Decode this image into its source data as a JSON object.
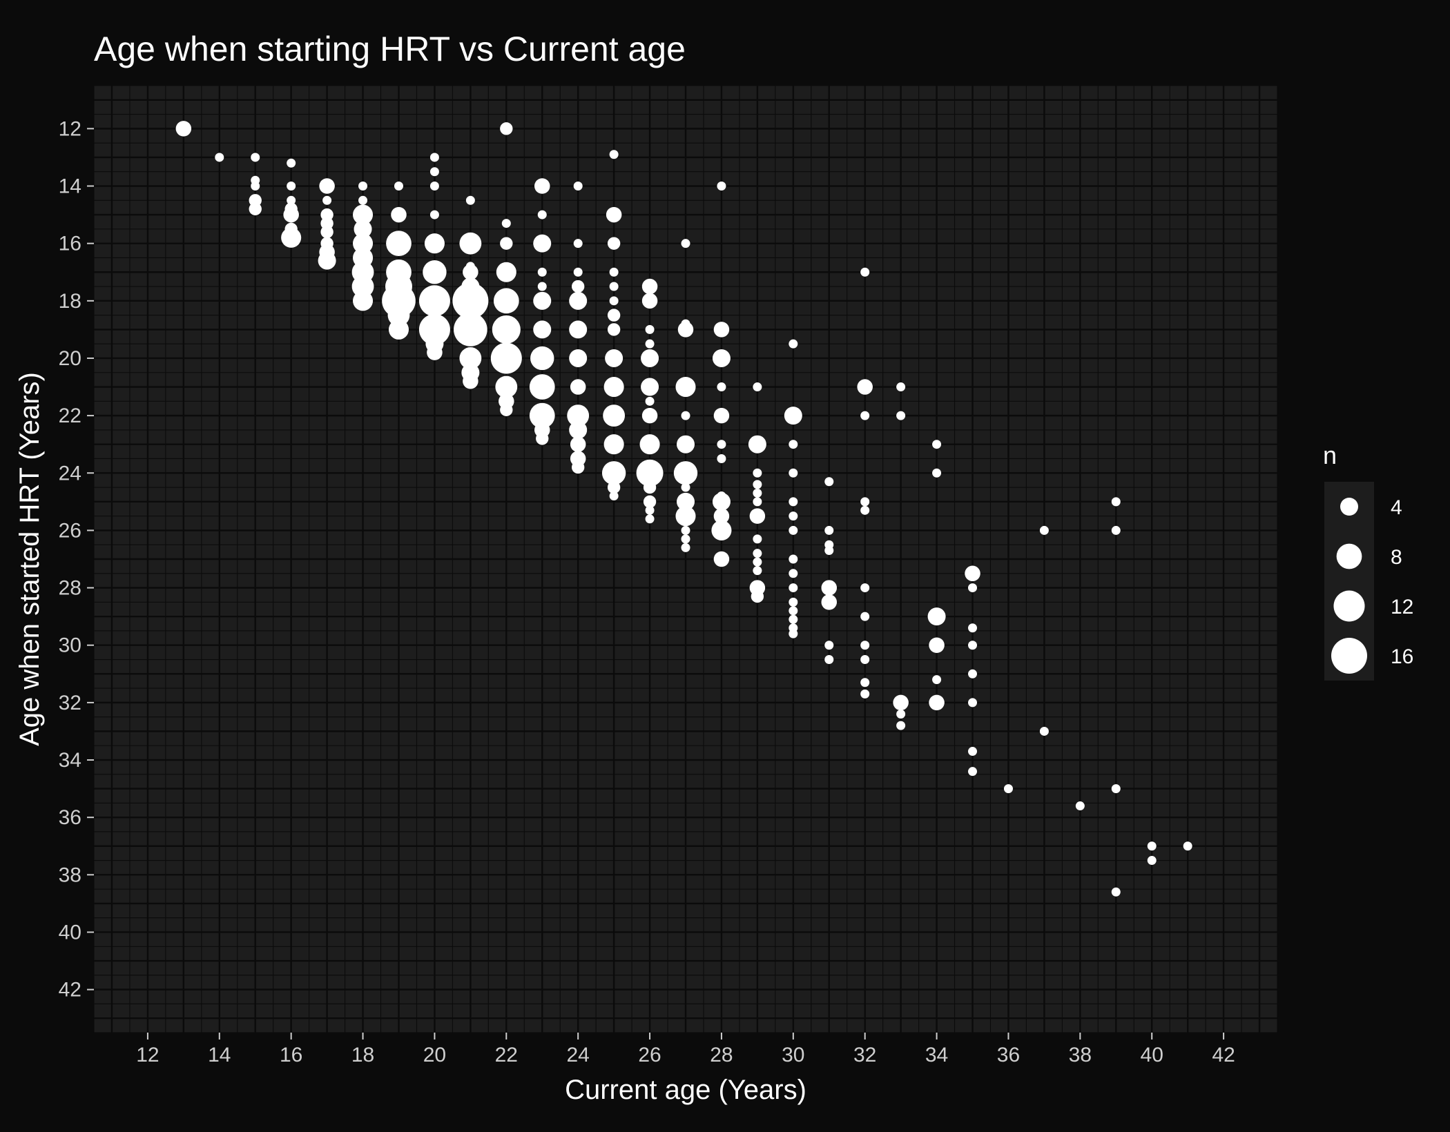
{
  "chart_data": {
    "type": "scatter",
    "title": "Age when starting HRT vs Current age",
    "xlabel": "Current age (Years)",
    "ylabel": "Age when started HRT (Years)",
    "xlim": [
      10.5,
      43.5
    ],
    "ylim": [
      10.5,
      43.5
    ],
    "y_reversed": true,
    "x_ticks": [
      12,
      14,
      16,
      18,
      20,
      22,
      24,
      26,
      28,
      30,
      32,
      34,
      36,
      38,
      40,
      42
    ],
    "y_ticks": [
      12,
      14,
      16,
      18,
      20,
      22,
      24,
      26,
      28,
      30,
      32,
      34,
      36,
      38,
      40,
      42
    ],
    "grid": true,
    "colors": {
      "background": "#0b0b0b",
      "panel": "#1d1d1d",
      "grid": "#0b0b0b",
      "point": "#ffffff"
    },
    "size_legend": {
      "title": "n",
      "placement": "right",
      "values": [
        4,
        8,
        12,
        16
      ]
    },
    "points": [
      {
        "x": 13,
        "y": 12,
        "n": 3
      },
      {
        "x": 14,
        "y": 13,
        "n": 1
      },
      {
        "x": 15,
        "y": 13,
        "n": 1
      },
      {
        "x": 15,
        "y": 13.8,
        "n": 1
      },
      {
        "x": 15,
        "y": 14,
        "n": 1
      },
      {
        "x": 15,
        "y": 14.5,
        "n": 2
      },
      {
        "x": 15,
        "y": 14.8,
        "n": 2
      },
      {
        "x": 16,
        "y": 13.2,
        "n": 1
      },
      {
        "x": 16,
        "y": 14,
        "n": 1
      },
      {
        "x": 16,
        "y": 14.5,
        "n": 1
      },
      {
        "x": 16,
        "y": 14.8,
        "n": 2
      },
      {
        "x": 16,
        "y": 15,
        "n": 3
      },
      {
        "x": 16,
        "y": 15.5,
        "n": 2
      },
      {
        "x": 16,
        "y": 15.8,
        "n": 5
      },
      {
        "x": 17,
        "y": 14,
        "n": 3
      },
      {
        "x": 17,
        "y": 14.5,
        "n": 1
      },
      {
        "x": 17,
        "y": 15,
        "n": 2
      },
      {
        "x": 17,
        "y": 15.3,
        "n": 2
      },
      {
        "x": 17,
        "y": 15.6,
        "n": 2
      },
      {
        "x": 17,
        "y": 16,
        "n": 2
      },
      {
        "x": 17,
        "y": 16.3,
        "n": 3
      },
      {
        "x": 17,
        "y": 16.6,
        "n": 4
      },
      {
        "x": 18,
        "y": 14,
        "n": 1
      },
      {
        "x": 18,
        "y": 14.5,
        "n": 1
      },
      {
        "x": 18,
        "y": 15,
        "n": 5
      },
      {
        "x": 18,
        "y": 15.5,
        "n": 4
      },
      {
        "x": 18,
        "y": 16,
        "n": 5
      },
      {
        "x": 18,
        "y": 16.5,
        "n": 5
      },
      {
        "x": 18,
        "y": 17,
        "n": 6
      },
      {
        "x": 18,
        "y": 17.5,
        "n": 6
      },
      {
        "x": 18,
        "y": 18,
        "n": 5
      },
      {
        "x": 19,
        "y": 14,
        "n": 1
      },
      {
        "x": 19,
        "y": 15,
        "n": 3
      },
      {
        "x": 19,
        "y": 16,
        "n": 8
      },
      {
        "x": 19,
        "y": 17,
        "n": 8
      },
      {
        "x": 19,
        "y": 17.5,
        "n": 9
      },
      {
        "x": 19,
        "y": 18,
        "n": 14
      },
      {
        "x": 19,
        "y": 18.5,
        "n": 6
      },
      {
        "x": 19,
        "y": 19,
        "n": 5
      },
      {
        "x": 20,
        "y": 13,
        "n": 1
      },
      {
        "x": 20,
        "y": 13.5,
        "n": 1
      },
      {
        "x": 20,
        "y": 14,
        "n": 1
      },
      {
        "x": 20,
        "y": 15,
        "n": 1
      },
      {
        "x": 20,
        "y": 16,
        "n": 5
      },
      {
        "x": 20,
        "y": 17,
        "n": 7
      },
      {
        "x": 20,
        "y": 18,
        "n": 12
      },
      {
        "x": 20,
        "y": 19,
        "n": 12
      },
      {
        "x": 20,
        "y": 19.5,
        "n": 4
      },
      {
        "x": 20,
        "y": 19.8,
        "n": 3
      },
      {
        "x": 21,
        "y": 14.5,
        "n": 1
      },
      {
        "x": 21,
        "y": 16,
        "n": 6
      },
      {
        "x": 21,
        "y": 16.8,
        "n": 1
      },
      {
        "x": 21,
        "y": 17,
        "n": 3
      },
      {
        "x": 21,
        "y": 17.5,
        "n": 4
      },
      {
        "x": 21,
        "y": 18,
        "n": 16
      },
      {
        "x": 21,
        "y": 19,
        "n": 14
      },
      {
        "x": 21,
        "y": 20,
        "n": 6
      },
      {
        "x": 21,
        "y": 20.5,
        "n": 4
      },
      {
        "x": 21,
        "y": 20.8,
        "n": 3
      },
      {
        "x": 22,
        "y": 12,
        "n": 2
      },
      {
        "x": 22,
        "y": 15.3,
        "n": 1
      },
      {
        "x": 22,
        "y": 16,
        "n": 2
      },
      {
        "x": 22,
        "y": 17,
        "n": 5
      },
      {
        "x": 22,
        "y": 18,
        "n": 8
      },
      {
        "x": 22,
        "y": 19,
        "n": 10
      },
      {
        "x": 22,
        "y": 20,
        "n": 12
      },
      {
        "x": 22,
        "y": 21,
        "n": 6
      },
      {
        "x": 22,
        "y": 21.5,
        "n": 3
      },
      {
        "x": 22,
        "y": 21.8,
        "n": 2
      },
      {
        "x": 23,
        "y": 14,
        "n": 3
      },
      {
        "x": 23,
        "y": 15,
        "n": 1
      },
      {
        "x": 23,
        "y": 16,
        "n": 4
      },
      {
        "x": 23,
        "y": 17,
        "n": 1
      },
      {
        "x": 23,
        "y": 17.5,
        "n": 1
      },
      {
        "x": 23,
        "y": 18,
        "n": 4
      },
      {
        "x": 23,
        "y": 19,
        "n": 4
      },
      {
        "x": 23,
        "y": 20,
        "n": 7
      },
      {
        "x": 23,
        "y": 21,
        "n": 8
      },
      {
        "x": 23,
        "y": 22,
        "n": 8
      },
      {
        "x": 23,
        "y": 22.5,
        "n": 3
      },
      {
        "x": 23,
        "y": 22.8,
        "n": 2
      },
      {
        "x": 24,
        "y": 14,
        "n": 1
      },
      {
        "x": 24,
        "y": 16,
        "n": 1
      },
      {
        "x": 24,
        "y": 17,
        "n": 1
      },
      {
        "x": 24,
        "y": 17.5,
        "n": 2
      },
      {
        "x": 24,
        "y": 18,
        "n": 4
      },
      {
        "x": 24,
        "y": 19,
        "n": 4
      },
      {
        "x": 24,
        "y": 20,
        "n": 4
      },
      {
        "x": 24,
        "y": 21,
        "n": 3
      },
      {
        "x": 24,
        "y": 22,
        "n": 6
      },
      {
        "x": 24,
        "y": 22.5,
        "n": 4
      },
      {
        "x": 24,
        "y": 23,
        "n": 3
      },
      {
        "x": 24,
        "y": 23.5,
        "n": 3
      },
      {
        "x": 24,
        "y": 23.8,
        "n": 2
      },
      {
        "x": 25,
        "y": 12.9,
        "n": 1
      },
      {
        "x": 25,
        "y": 15,
        "n": 3
      },
      {
        "x": 25,
        "y": 16,
        "n": 2
      },
      {
        "x": 25,
        "y": 17,
        "n": 1
      },
      {
        "x": 25,
        "y": 17.5,
        "n": 1
      },
      {
        "x": 25,
        "y": 18,
        "n": 1
      },
      {
        "x": 25,
        "y": 18.5,
        "n": 2
      },
      {
        "x": 25,
        "y": 19,
        "n": 2
      },
      {
        "x": 25,
        "y": 20,
        "n": 4
      },
      {
        "x": 25,
        "y": 21,
        "n": 5
      },
      {
        "x": 25,
        "y": 22,
        "n": 6
      },
      {
        "x": 25,
        "y": 23,
        "n": 5
      },
      {
        "x": 25,
        "y": 24,
        "n": 7
      },
      {
        "x": 25,
        "y": 24.5,
        "n": 2
      },
      {
        "x": 25,
        "y": 24.8,
        "n": 1
      },
      {
        "x": 26,
        "y": 17.5,
        "n": 3
      },
      {
        "x": 26,
        "y": 18,
        "n": 3
      },
      {
        "x": 26,
        "y": 19,
        "n": 1
      },
      {
        "x": 26,
        "y": 19.5,
        "n": 1
      },
      {
        "x": 26,
        "y": 20,
        "n": 4
      },
      {
        "x": 26,
        "y": 21,
        "n": 4
      },
      {
        "x": 26,
        "y": 21.5,
        "n": 1
      },
      {
        "x": 26,
        "y": 22,
        "n": 3
      },
      {
        "x": 26,
        "y": 23,
        "n": 5
      },
      {
        "x": 26,
        "y": 24,
        "n": 9
      },
      {
        "x": 26,
        "y": 24.5,
        "n": 2
      },
      {
        "x": 26,
        "y": 25,
        "n": 2
      },
      {
        "x": 26,
        "y": 25.3,
        "n": 1
      },
      {
        "x": 26,
        "y": 25.6,
        "n": 1
      },
      {
        "x": 27,
        "y": 16,
        "n": 1
      },
      {
        "x": 27,
        "y": 18.8,
        "n": 1
      },
      {
        "x": 27,
        "y": 19,
        "n": 3
      },
      {
        "x": 27,
        "y": 21,
        "n": 5
      },
      {
        "x": 27,
        "y": 22,
        "n": 1
      },
      {
        "x": 27,
        "y": 23,
        "n": 4
      },
      {
        "x": 27,
        "y": 24,
        "n": 7
      },
      {
        "x": 27,
        "y": 24.5,
        "n": 1
      },
      {
        "x": 27,
        "y": 25,
        "n": 4
      },
      {
        "x": 27,
        "y": 25.5,
        "n": 5
      },
      {
        "x": 27,
        "y": 26,
        "n": 1
      },
      {
        "x": 27,
        "y": 26.3,
        "n": 1
      },
      {
        "x": 27,
        "y": 26.6,
        "n": 1
      },
      {
        "x": 28,
        "y": 14,
        "n": 1
      },
      {
        "x": 28,
        "y": 19,
        "n": 3
      },
      {
        "x": 28,
        "y": 20,
        "n": 4
      },
      {
        "x": 28,
        "y": 21,
        "n": 1
      },
      {
        "x": 28,
        "y": 22,
        "n": 3
      },
      {
        "x": 28,
        "y": 23,
        "n": 1
      },
      {
        "x": 28,
        "y": 23.5,
        "n": 1
      },
      {
        "x": 28,
        "y": 24.8,
        "n": 1
      },
      {
        "x": 28,
        "y": 25,
        "n": 4
      },
      {
        "x": 28,
        "y": 25.5,
        "n": 3
      },
      {
        "x": 28,
        "y": 26,
        "n": 5
      },
      {
        "x": 28,
        "y": 27,
        "n": 3
      },
      {
        "x": 29,
        "y": 21,
        "n": 1
      },
      {
        "x": 29,
        "y": 23,
        "n": 4
      },
      {
        "x": 29,
        "y": 24,
        "n": 1
      },
      {
        "x": 29,
        "y": 24.4,
        "n": 1
      },
      {
        "x": 29,
        "y": 24.7,
        "n": 1
      },
      {
        "x": 29,
        "y": 25,
        "n": 1
      },
      {
        "x": 29,
        "y": 25.5,
        "n": 3
      },
      {
        "x": 29,
        "y": 26.3,
        "n": 1
      },
      {
        "x": 29,
        "y": 26.8,
        "n": 1
      },
      {
        "x": 29,
        "y": 27.1,
        "n": 1
      },
      {
        "x": 29,
        "y": 27.4,
        "n": 1
      },
      {
        "x": 29,
        "y": 28,
        "n": 3
      },
      {
        "x": 29,
        "y": 28.3,
        "n": 2
      },
      {
        "x": 30,
        "y": 19.5,
        "n": 1
      },
      {
        "x": 30,
        "y": 22,
        "n": 4
      },
      {
        "x": 30,
        "y": 23,
        "n": 1
      },
      {
        "x": 30,
        "y": 24,
        "n": 1
      },
      {
        "x": 30,
        "y": 25,
        "n": 1
      },
      {
        "x": 30,
        "y": 25.5,
        "n": 1
      },
      {
        "x": 30,
        "y": 26,
        "n": 1
      },
      {
        "x": 30,
        "y": 27,
        "n": 1
      },
      {
        "x": 30,
        "y": 27.5,
        "n": 1
      },
      {
        "x": 30,
        "y": 28,
        "n": 1
      },
      {
        "x": 30,
        "y": 28.5,
        "n": 1
      },
      {
        "x": 30,
        "y": 28.8,
        "n": 1
      },
      {
        "x": 30,
        "y": 29.1,
        "n": 1
      },
      {
        "x": 30,
        "y": 29.4,
        "n": 1
      },
      {
        "x": 30,
        "y": 29.6,
        "n": 1
      },
      {
        "x": 31,
        "y": 24.3,
        "n": 1
      },
      {
        "x": 31,
        "y": 26,
        "n": 1
      },
      {
        "x": 31,
        "y": 26.5,
        "n": 1
      },
      {
        "x": 31,
        "y": 26.7,
        "n": 1
      },
      {
        "x": 31,
        "y": 28,
        "n": 3
      },
      {
        "x": 31,
        "y": 28.5,
        "n": 3
      },
      {
        "x": 31,
        "y": 30,
        "n": 1
      },
      {
        "x": 31,
        "y": 30.5,
        "n": 1
      },
      {
        "x": 32,
        "y": 17,
        "n": 1
      },
      {
        "x": 32,
        "y": 21,
        "n": 3
      },
      {
        "x": 32,
        "y": 22,
        "n": 1
      },
      {
        "x": 32,
        "y": 25,
        "n": 1
      },
      {
        "x": 32,
        "y": 25.3,
        "n": 1
      },
      {
        "x": 32,
        "y": 28,
        "n": 1
      },
      {
        "x": 32,
        "y": 29,
        "n": 1
      },
      {
        "x": 32,
        "y": 30,
        "n": 1
      },
      {
        "x": 32,
        "y": 30.5,
        "n": 1
      },
      {
        "x": 32,
        "y": 31.3,
        "n": 1
      },
      {
        "x": 32,
        "y": 31.7,
        "n": 1
      },
      {
        "x": 33,
        "y": 21,
        "n": 1
      },
      {
        "x": 33,
        "y": 22,
        "n": 1
      },
      {
        "x": 33,
        "y": 32,
        "n": 3
      },
      {
        "x": 33,
        "y": 32.4,
        "n": 1
      },
      {
        "x": 33,
        "y": 32.8,
        "n": 1
      },
      {
        "x": 34,
        "y": 23,
        "n": 1
      },
      {
        "x": 34,
        "y": 24,
        "n": 1
      },
      {
        "x": 34,
        "y": 29,
        "n": 4
      },
      {
        "x": 34,
        "y": 30,
        "n": 3
      },
      {
        "x": 34,
        "y": 31.2,
        "n": 1
      },
      {
        "x": 34,
        "y": 32,
        "n": 3
      },
      {
        "x": 35,
        "y": 27.5,
        "n": 3
      },
      {
        "x": 35,
        "y": 28,
        "n": 1
      },
      {
        "x": 35,
        "y": 29.4,
        "n": 1
      },
      {
        "x": 35,
        "y": 30,
        "n": 1
      },
      {
        "x": 35,
        "y": 31,
        "n": 1
      },
      {
        "x": 35,
        "y": 32,
        "n": 1
      },
      {
        "x": 35,
        "y": 33.7,
        "n": 1
      },
      {
        "x": 35,
        "y": 34.4,
        "n": 1
      },
      {
        "x": 36,
        "y": 35,
        "n": 1
      },
      {
        "x": 37,
        "y": 26,
        "n": 1
      },
      {
        "x": 37,
        "y": 33,
        "n": 1
      },
      {
        "x": 38,
        "y": 35.6,
        "n": 1
      },
      {
        "x": 39,
        "y": 25,
        "n": 1
      },
      {
        "x": 39,
        "y": 26,
        "n": 1
      },
      {
        "x": 39,
        "y": 35,
        "n": 1
      },
      {
        "x": 39,
        "y": 38.6,
        "n": 1
      },
      {
        "x": 40,
        "y": 37,
        "n": 1
      },
      {
        "x": 40,
        "y": 37.5,
        "n": 1
      },
      {
        "x": 41,
        "y": 37,
        "n": 1
      }
    ]
  }
}
